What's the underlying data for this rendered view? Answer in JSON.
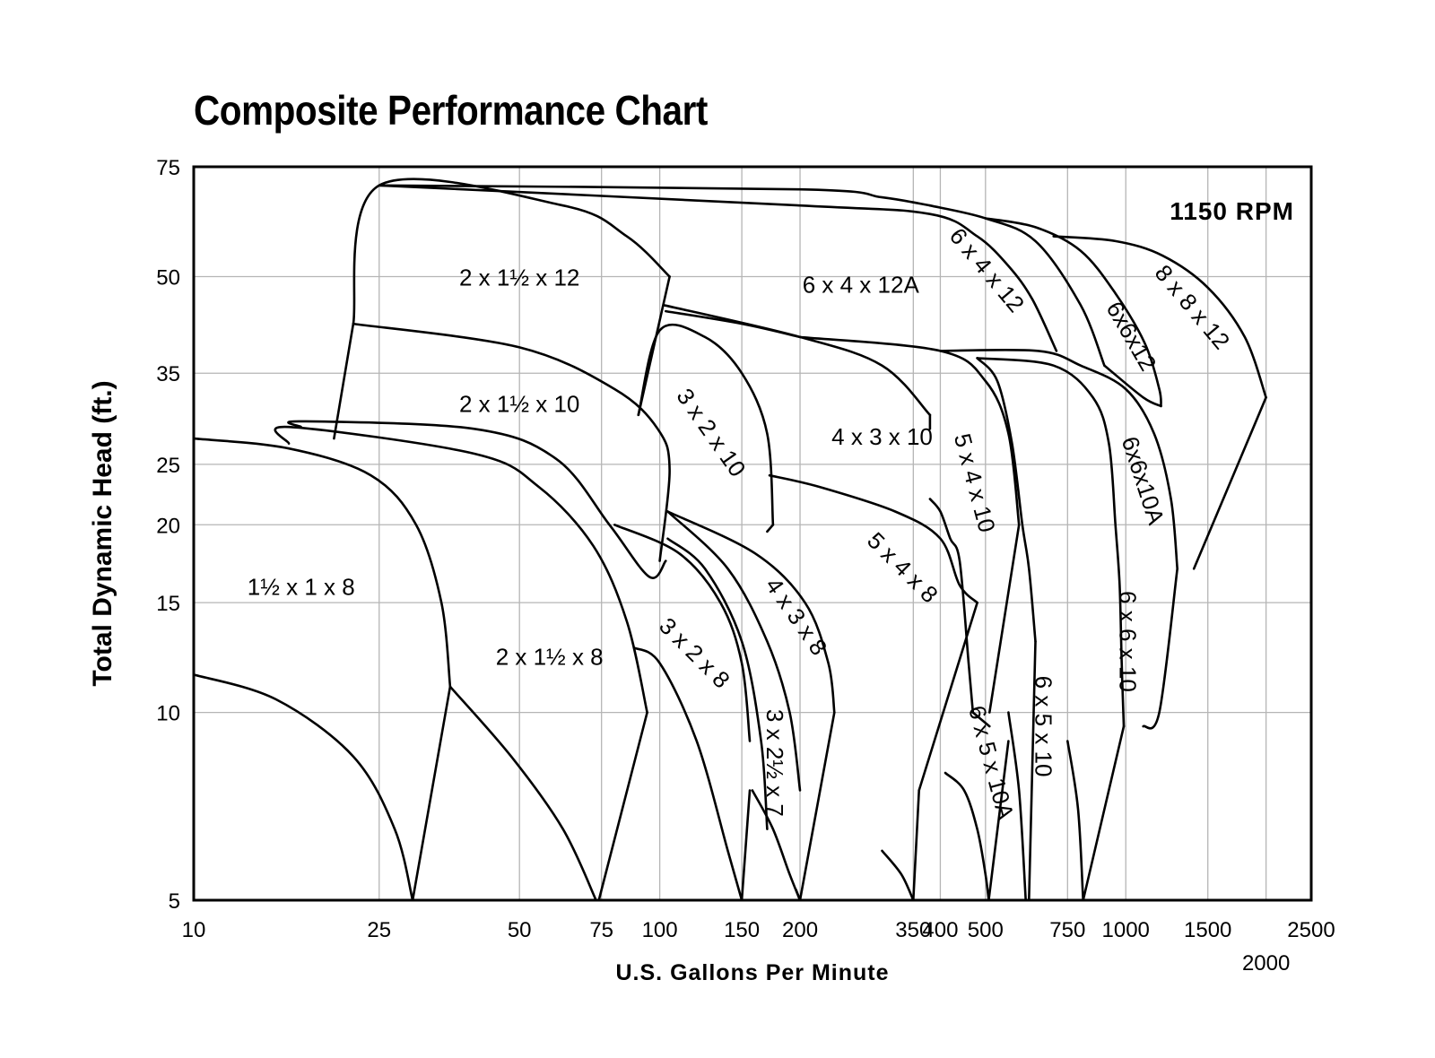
{
  "chart_data": {
    "type": "line",
    "title": "Composite Performance Chart",
    "xlabel": "U.S. Gallons Per Minute",
    "ylabel": "Total Dynamic Head (ft.)",
    "x_scale": "log",
    "y_scale": "log",
    "xlim": [
      10,
      2500
    ],
    "ylim": [
      5,
      75
    ],
    "x_ticks": [
      {
        "value": 10,
        "label": "10"
      },
      {
        "value": 25,
        "label": "25"
      },
      {
        "value": 50,
        "label": "50"
      },
      {
        "value": 75,
        "label": "75"
      },
      {
        "value": 100,
        "label": "100"
      },
      {
        "value": 150,
        "label": "150"
      },
      {
        "value": 200,
        "label": "200"
      },
      {
        "value": 350,
        "label": "350"
      },
      {
        "value": 400,
        "label": "400"
      },
      {
        "value": 500,
        "label": "500"
      },
      {
        "value": 750,
        "label": "750"
      },
      {
        "value": 1000,
        "label": "1000"
      },
      {
        "value": 1500,
        "label": "1500"
      },
      {
        "value": 2000,
        "label": "2000"
      },
      {
        "value": 2500,
        "label": "2500"
      }
    ],
    "y_ticks": [
      {
        "value": 5,
        "label": "5"
      },
      {
        "value": 10,
        "label": "10"
      },
      {
        "value": 15,
        "label": "15"
      },
      {
        "value": 20,
        "label": "20"
      },
      {
        "value": 25,
        "label": "25"
      },
      {
        "value": 35,
        "label": "35"
      },
      {
        "value": 50,
        "label": "50"
      },
      {
        "value": 75,
        "label": "75"
      }
    ],
    "annotation": "1150 RPM",
    "grid": true,
    "series": [
      {
        "name": "1½ x 1 x 8",
        "label_at": [
          17,
          15.8
        ],
        "rotate": 0,
        "paths": [
          [
            [
              10,
              27.5
            ],
            [
              16,
              26.5
            ],
            [
              24,
              24
            ],
            [
              30,
              20
            ],
            [
              34,
              15
            ],
            [
              35.5,
              11
            ]
          ],
          [
            [
              10,
              11.5
            ],
            [
              15,
              10.5
            ],
            [
              22,
              8.5
            ],
            [
              27,
              6.5
            ],
            [
              29.5,
              5
            ]
          ],
          [
            [
              29.5,
              5
            ],
            [
              35.5,
              11
            ]
          ]
        ]
      },
      {
        "name": "2 x 1½ x 8",
        "label_at": [
          58,
          12.2
        ],
        "rotate": 0,
        "paths": [
          [
            [
              16,
              27
            ],
            [
              16,
              28.7
            ],
            [
              40,
              26
            ],
            [
              55,
              23
            ],
            [
              72,
              18.5
            ],
            [
              85,
              14
            ],
            [
              94,
              10
            ]
          ],
          [
            [
              35.5,
              11
            ],
            [
              48,
              8.5
            ],
            [
              62,
              6.5
            ],
            [
              73,
              5
            ]
          ],
          [
            [
              74,
              5
            ],
            [
              94,
              10
            ]
          ]
        ]
      },
      {
        "name": "2 x 1½ x 10",
        "label_at": [
          50,
          31
        ],
        "rotate": 0,
        "paths": [
          [
            [
              20,
              27.5
            ],
            [
              22,
              42
            ]
          ],
          [
            [
              17,
              28.7
            ],
            [
              17,
              29.3
            ],
            [
              40,
              28.5
            ],
            [
              60,
              25.5
            ],
            [
              78,
              20
            ],
            [
              95,
              16.5
            ],
            [
              103,
              17.5
            ]
          ],
          [
            [
              22,
              42
            ],
            [
              50,
              38.5
            ],
            [
              80,
              33
            ],
            [
              99,
              28.5
            ],
            [
              105,
              24.5
            ],
            [
              100,
              17.5
            ]
          ]
        ]
      },
      {
        "name": "2 x 1½ x 12",
        "label_at": [
          50,
          49.5
        ],
        "rotate": 0,
        "paths": [
          [
            [
              22,
              42
            ],
            [
              25,
              70
            ],
            [
              62,
              65
            ],
            [
              85,
              58
            ],
            [
              105,
              50
            ]
          ],
          [
            [
              105,
              50
            ],
            [
              90,
              30
            ]
          ]
        ]
      },
      {
        "name": "3 x 2 x 8",
        "label_at": [
          118,
          12.4
        ],
        "rotate": 45,
        "paths": [
          [
            [
              80,
              20
            ],
            [
              110,
              18
            ],
            [
              135,
              15
            ],
            [
              150,
              12
            ],
            [
              156,
              9
            ]
          ],
          [
            [
              88,
              12.7
            ],
            [
              100,
              12
            ],
            [
              120,
              9
            ],
            [
              140,
              6
            ],
            [
              150,
              5
            ]
          ],
          [
            [
              150,
              5
            ],
            [
              156,
              7.5
            ]
          ]
        ]
      },
      {
        "name": "3 x 2½ x 7",
        "label_at": [
          175,
          8.3
        ],
        "rotate": 90,
        "paths": [
          [
            [
              104,
              19
            ],
            [
              125,
              17
            ],
            [
              150,
              13
            ],
            [
              165,
              9
            ],
            [
              170,
              6.5
            ]
          ],
          [
            [
              158,
              7.5
            ],
            [
              175,
              6.5
            ],
            [
              190,
              5.5
            ],
            [
              200,
              5
            ]
          ],
          [
            [
              200,
              5
            ],
            [
              196,
              5.2
            ]
          ]
        ]
      },
      {
        "name": "3 x 2 x 10",
        "label_at": [
          128,
          28
        ],
        "rotate": 55,
        "paths": [
          [
            [
              90,
              30
            ],
            [
              100,
              41
            ],
            [
              125,
              40
            ],
            [
              150,
              35
            ],
            [
              170,
              28
            ],
            [
              175,
              20
            ]
          ],
          [
            [
              175,
              20
            ],
            [
              170,
              19.5
            ]
          ]
        ]
      },
      {
        "name": "4 x 3 x 8",
        "label_at": [
          195,
          14.2
        ],
        "rotate": 55,
        "paths": [
          [
            [
              104,
              21
            ],
            [
              160,
              18
            ],
            [
              205,
              15
            ],
            [
              230,
              12
            ],
            [
              237,
              10
            ]
          ],
          [
            [
              237,
              10
            ],
            [
              200,
              5
            ]
          ],
          [
            [
              104,
              21
            ],
            [
              140,
              17
            ],
            [
              170,
              13
            ],
            [
              190,
              10
            ],
            [
              200,
              7.5
            ]
          ]
        ]
      },
      {
        "name": "4 x 3 x 10",
        "label_at": [
          300,
          27.5
        ],
        "rotate": 0,
        "paths": [
          [
            [
              102,
              45
            ],
            [
              200,
              40
            ],
            [
              300,
              36
            ],
            [
              380,
              30
            ]
          ],
          [
            [
              380,
              30
            ],
            [
              380,
              28.5
            ]
          ]
        ]
      },
      {
        "name": "5 x 4 x 8",
        "label_at": [
          330,
          17
        ],
        "rotate": 45,
        "paths": [
          [
            [
              172,
              24
            ],
            [
              220,
              23
            ],
            [
              320,
              21
            ],
            [
              400,
              19
            ],
            [
              440,
              16
            ],
            [
              480,
              15
            ]
          ],
          [
            [
              480,
              15
            ],
            [
              360,
              7.5
            ]
          ],
          [
            [
              360,
              7.5
            ],
            [
              350,
              5
            ]
          ],
          [
            [
              300,
              6
            ],
            [
              330,
              5.5
            ],
            [
              350,
              5
            ]
          ]
        ]
      },
      {
        "name": "5 x 4 x 10",
        "label_at": [
          470,
          23.3
        ],
        "rotate": 75,
        "paths": [
          [
            [
              200,
              40
            ],
            [
              400,
              38
            ],
            [
              500,
              34
            ],
            [
              560,
              28
            ],
            [
              590,
              20
            ]
          ],
          [
            [
              590,
              20
            ],
            [
              510,
              10
            ]
          ],
          [
            [
              380,
              22
            ],
            [
              400,
              21
            ],
            [
              420,
              19
            ],
            [
              440,
              17.5
            ],
            [
              460,
              12
            ],
            [
              470,
              10
            ]
          ],
          [
            [
              470,
              10
            ],
            [
              510,
              9.5
            ]
          ]
        ]
      },
      {
        "name": "6 x 5 x 10A",
        "label_at": [
          510,
          8.3
        ],
        "rotate": 75,
        "paths": [
          [
            [
              410,
              8
            ],
            [
              450,
              7.5
            ],
            [
              480,
              6.5
            ],
            [
              500,
              5.5
            ],
            [
              508,
              5
            ]
          ],
          [
            [
              508,
              5
            ],
            [
              560,
              9
            ]
          ]
        ]
      },
      {
        "name": "6 x 5 x 10",
        "label_at": [
          660,
          9.5
        ],
        "rotate": 90,
        "paths": [
          [
            [
              480,
              37
            ],
            [
              530,
              34
            ],
            [
              570,
              27
            ],
            [
              600,
              20
            ],
            [
              620,
              17
            ],
            [
              640,
              13
            ]
          ],
          [
            [
              640,
              13
            ],
            [
              620,
              5
            ]
          ],
          [
            [
              560,
              10
            ],
            [
              590,
              7.5
            ],
            [
              610,
              5
            ]
          ]
        ]
      },
      {
        "name": "6 x 6 x 10",
        "label_at": [
          1000,
          13
        ],
        "rotate": 90,
        "paths": [
          [
            [
              480,
              37
            ],
            [
              700,
              36
            ],
            [
              850,
              32
            ],
            [
              920,
              27
            ],
            [
              950,
              20
            ],
            [
              970,
              16
            ],
            [
              980,
              12
            ],
            [
              990,
              9.5
            ]
          ],
          [
            [
              990,
              9.5
            ],
            [
              810,
              5
            ]
          ],
          [
            [
              750,
              9
            ],
            [
              790,
              7
            ],
            [
              810,
              5
            ]
          ]
        ]
      },
      {
        "name": "6x6x10A",
        "label_at": [
          1080,
          23.5
        ],
        "rotate": 72,
        "paths": [
          [
            [
              400,
              38
            ],
            [
              650,
              38
            ],
            [
              800,
              36
            ],
            [
              1000,
              33
            ],
            [
              1150,
              28
            ],
            [
              1250,
              22
            ],
            [
              1290,
              17
            ]
          ],
          [
            [
              1290,
              17
            ],
            [
              1180,
              10
            ],
            [
              1090,
              9.5
            ]
          ]
        ]
      },
      {
        "name": "6 x 4 x 12A",
        "label_at": [
          270,
          48.2
        ],
        "rotate": 0,
        "paths": [
          [
            [
              103,
              44
            ],
            [
              150,
              42
            ],
            [
              200,
              40
            ]
          ],
          [
            [
              25,
              70
            ],
            [
              200,
              69
            ],
            [
              300,
              67
            ],
            [
              380,
              65
            ]
          ]
        ]
      },
      {
        "name": "6 x 4 x 12",
        "label_at": [
          500,
          51
        ],
        "rotate": 50,
        "paths": [
          [
            [
              25,
              70
            ],
            [
              200,
              65
            ],
            [
              380,
              63
            ],
            [
              480,
              58
            ],
            [
              560,
              52
            ],
            [
              630,
              46
            ],
            [
              710,
              38
            ]
          ],
          [
            [
              380,
              65
            ],
            [
              500,
              62
            ],
            [
              640,
              57
            ],
            [
              800,
              45
            ],
            [
              900,
              36
            ]
          ]
        ]
      },
      {
        "name": "6x6x12",
        "label_at": [
          1020,
          40
        ],
        "rotate": 60,
        "paths": [
          [
            [
              500,
              62
            ],
            [
              640,
              60
            ],
            [
              800,
              55
            ],
            [
              950,
              47
            ],
            [
              1100,
              39
            ],
            [
              1180,
              33
            ],
            [
              1190,
              31
            ]
          ],
          [
            [
              1190,
              31
            ],
            [
              1090,
              32
            ],
            [
              900,
              36
            ]
          ]
        ]
      },
      {
        "name": "8 x 8 x 12",
        "label_at": [
          1380,
          44.5
        ],
        "rotate": 50,
        "paths": [
          [
            [
              700,
              58
            ],
            [
              950,
              57
            ],
            [
              1200,
              54
            ],
            [
              1500,
              48
            ],
            [
              1800,
              40
            ],
            [
              2000,
              32
            ]
          ],
          [
            [
              2000,
              32
            ],
            [
              1400,
              17
            ]
          ]
        ]
      }
    ]
  }
}
